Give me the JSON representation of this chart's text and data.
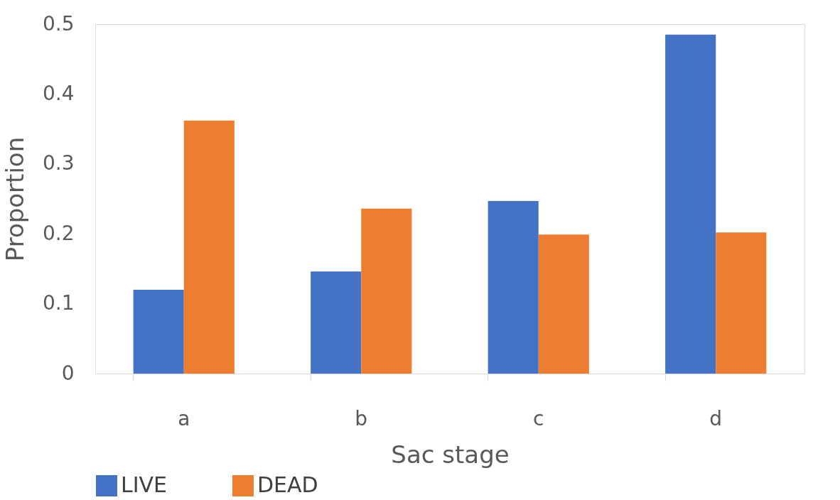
{
  "chart_data": {
    "type": "bar",
    "xlabel": "Sac stage",
    "ylabel": "Proportion",
    "categories": [
      "a",
      "b",
      "c",
      "d"
    ],
    "series": [
      {
        "name": "LIVE",
        "color": "#4472c4",
        "values": [
          0.12,
          0.146,
          0.247,
          0.485
        ]
      },
      {
        "name": "DEAD",
        "color": "#ed7d31",
        "values": [
          0.362,
          0.236,
          0.199,
          0.202
        ]
      }
    ],
    "ylim": [
      0,
      0.5
    ],
    "yticks": [
      0,
      0.1,
      0.2,
      0.3,
      0.4,
      0.5
    ],
    "grid": false,
    "legend": "bottom"
  }
}
